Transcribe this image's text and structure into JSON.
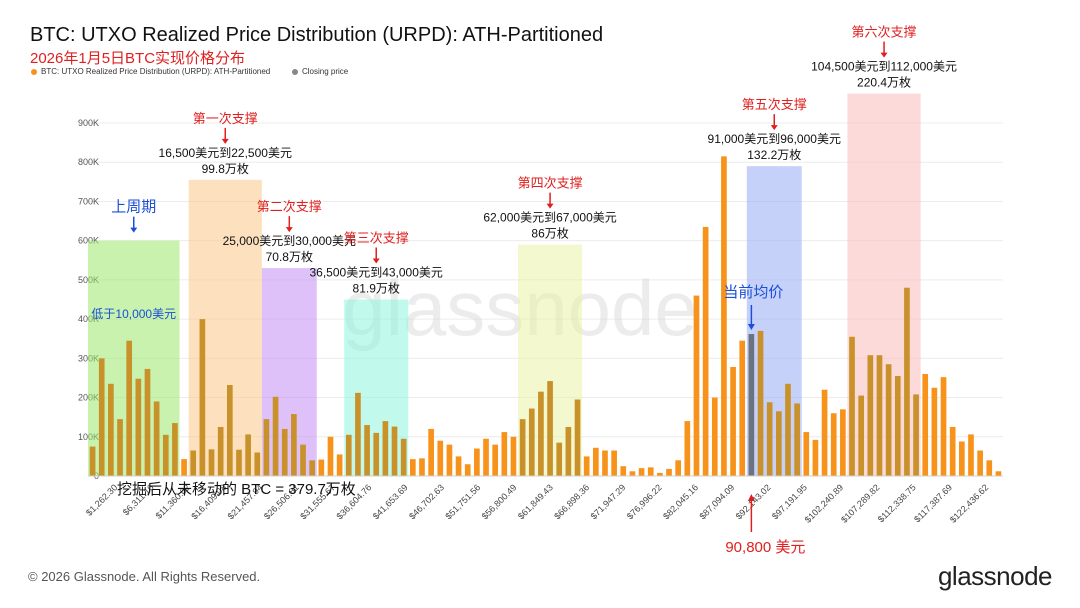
{
  "header": {
    "title": "BTC: UTXO Realized Price Distribution (URPD): ATH-Partitioned",
    "subtitle": "2026年1月5日BTC实现价格分布"
  },
  "legend": [
    {
      "label": "BTC: UTXO Realized Price Distribution (URPD): ATH-Partitioned",
      "color": "#f7931a"
    },
    {
      "label": "Closing price",
      "color": "#888888"
    }
  ],
  "footer": {
    "copyright": "© 2026 Glassnode. All Rights Reserved.",
    "brand": "glassnode"
  },
  "watermark": "glassnode",
  "colors": {
    "bar": "#f7931a",
    "bar_dark": "#c8912a",
    "closing": "#6b7280"
  },
  "chart_data": {
    "type": "bar",
    "title": "BTC: UTXO Realized Price Distribution (URPD): ATH-Partitioned",
    "ylim": [
      0,
      900000
    ],
    "yticks": [
      "0",
      "100K",
      "200K",
      "300K",
      "400K",
      "500K",
      "600K",
      "700K",
      "800K",
      "900K"
    ],
    "xticks": [
      "$1,262.30",
      "$6,311.16",
      "$11,360.02",
      "$16,409.08",
      "$21,457.94",
      "$26,506.81",
      "$31,555.67",
      "$36,604.76",
      "$41,653.69",
      "$46,702.63",
      "$51,751.56",
      "$56,800.49",
      "$61,849.43",
      "$66,898.36",
      "$71,947.29",
      "$76,996.22",
      "$82,045.16",
      "$87,094.09",
      "$92,143.02",
      "$97,191.95",
      "$102,240.89",
      "$107,289.82",
      "$112,338.75",
      "$117,387.69",
      "$122,436.62"
    ],
    "values": [
      75000,
      300000,
      235000,
      145000,
      345000,
      248000,
      273000,
      190000,
      105000,
      135000,
      43000,
      65000,
      400000,
      68000,
      125000,
      232000,
      67000,
      106000,
      60000,
      145000,
      202000,
      120000,
      158000,
      80000,
      40000,
      42000,
      100000,
      55000,
      105000,
      212000,
      130000,
      110000,
      140000,
      126000,
      95000,
      43000,
      45000,
      120000,
      90000,
      80000,
      50000,
      30000,
      70000,
      95000,
      80000,
      112000,
      100000,
      145000,
      172000,
      215000,
      242000,
      85000,
      125000,
      195000,
      50000,
      72000,
      65000,
      65000,
      25000,
      12000,
      20000,
      22000,
      8000,
      18000,
      40000,
      140000,
      460000,
      635000,
      200000,
      815000,
      278000,
      345000,
      362000,
      370000,
      188000,
      165000,
      235000,
      185000,
      112000,
      92000,
      220000,
      160000,
      170000,
      355000,
      205000,
      308000,
      308000,
      285000,
      255000,
      480000,
      208000,
      260000,
      225000,
      252000,
      125000,
      88000,
      106000,
      65000,
      40000,
      12000
    ],
    "closing_index": 72,
    "closing_label": "90,800 美元",
    "annotation_main": "挖掘后从未移动的 BTC = 379.7万枚",
    "zones": [
      {
        "from": 0,
        "to": 9,
        "color": "#9ae86c",
        "ymax": 600000,
        "top_label": "上周期",
        "arrow_color": "#1a4fd8",
        "label_color": "#1a4fd8",
        "inner_label": "低于10,000美元",
        "range_label": "",
        "amount_label": ""
      },
      {
        "from": 11,
        "to": 18,
        "color": "#fbc98a",
        "ymax": 755000,
        "top_label": "第一次支撑",
        "arrow_color": "#e02020",
        "label_color": "#e02020",
        "inner_label": "",
        "range_label": "16,500美元到22,500美元",
        "amount_label": "99.8万枚"
      },
      {
        "from": 19,
        "to": 24,
        "color": "#c48ef5",
        "ymax": 530000,
        "top_label": "第二次支撑",
        "arrow_color": "#e02020",
        "label_color": "#e02020",
        "inner_label": "",
        "range_label": "25,000美元到30,000美元",
        "amount_label": "70.8万枚"
      },
      {
        "from": 28,
        "to": 34,
        "color": "#8ef5de",
        "ymax": 450000,
        "top_label": "第三次支撑",
        "arrow_color": "#e02020",
        "label_color": "#e02020",
        "inner_label": "",
        "range_label": "36,500美元到43,000美元",
        "amount_label": "81.9万枚"
      },
      {
        "from": 47,
        "to": 53,
        "color": "#eaf3a6",
        "ymax": 590000,
        "top_label": "第四次支撑",
        "arrow_color": "#e02020",
        "label_color": "#e02020",
        "inner_label": "",
        "range_label": "62,000美元到67,000美元",
        "amount_label": "86万枚"
      },
      {
        "from": 72,
        "to": 77,
        "color": "#98acf5",
        "ymax": 790000,
        "top_label": "第五次支撑",
        "arrow_color": "#e02020",
        "label_color": "#e02020",
        "inner_label": "",
        "range_label": "91,000美元到96,000美元",
        "amount_label": "132.2万枚"
      },
      {
        "from": 83,
        "to": 90,
        "color": "#fbbcbc",
        "ymax": 975000,
        "top_label": "第六次支撑",
        "arrow_color": "#e02020",
        "label_color": "#e02020",
        "inner_label": "",
        "range_label": "104,500美元到112,000美元",
        "amount_label": "220.4万枚"
      }
    ],
    "current_avg_label": "当前均价"
  }
}
